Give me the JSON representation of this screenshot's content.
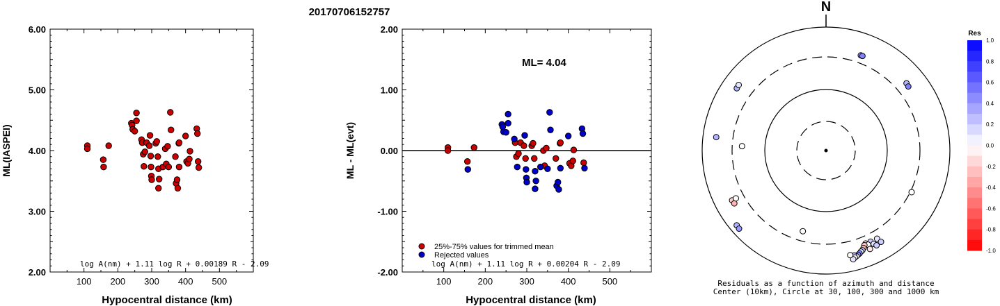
{
  "page_title": "20170706152757",
  "chart_data": [
    {
      "type": "scatter",
      "xlabel": "Hypocentral distance (km)",
      "ylabel": "ML(IASPEI)",
      "xlim": [
        0,
        600
      ],
      "ylim": [
        2.0,
        6.0
      ],
      "xticks": [
        "100",
        "200",
        "300",
        "400",
        "500"
      ],
      "yticks": [
        "2.00",
        "3.00",
        "4.00",
        "5.00",
        "6.00"
      ],
      "formula": "log A(nm) + 1.11 log R + 0.00189 R - 2.09",
      "point_color": "#cc0000",
      "points": [
        [
          110,
          4.08
        ],
        [
          110,
          4.03
        ],
        [
          157,
          3.85
        ],
        [
          158,
          3.73
        ],
        [
          173,
          4.08
        ],
        [
          240,
          4.45
        ],
        [
          242,
          4.42
        ],
        [
          244,
          4.35
        ],
        [
          250,
          4.32
        ],
        [
          255,
          4.62
        ],
        [
          255,
          4.49
        ],
        [
          270,
          4.18
        ],
        [
          272,
          4.13
        ],
        [
          275,
          3.94
        ],
        [
          277,
          3.74
        ],
        [
          280,
          3.98
        ],
        [
          285,
          4.13
        ],
        [
          293,
          4.08
        ],
        [
          295,
          4.25
        ],
        [
          297,
          3.91
        ],
        [
          298,
          3.73
        ],
        [
          299,
          3.58
        ],
        [
          300,
          3.52
        ],
        [
          312,
          4.12
        ],
        [
          315,
          4.15
        ],
        [
          318,
          3.9
        ],
        [
          320,
          3.7
        ],
        [
          322,
          3.53
        ],
        [
          320,
          3.38
        ],
        [
          333,
          3.73
        ],
        [
          340,
          4.03
        ],
        [
          343,
          3.78
        ],
        [
          347,
          4.07
        ],
        [
          350,
          3.73
        ],
        [
          355,
          4.63
        ],
        [
          357,
          4.34
        ],
        [
          370,
          3.9
        ],
        [
          372,
          3.46
        ],
        [
          375,
          3.52
        ],
        [
          377,
          3.38
        ],
        [
          380,
          4.12
        ],
        [
          381,
          4.13
        ],
        [
          381,
          3.73
        ],
        [
          400,
          4.24
        ],
        [
          403,
          3.82
        ],
        [
          407,
          3.79
        ],
        [
          411,
          3.86
        ],
        [
          413,
          3.99
        ],
        [
          433,
          4.36
        ],
        [
          435,
          4.28
        ],
        [
          437,
          3.82
        ],
        [
          439,
          3.72
        ]
      ]
    },
    {
      "type": "scatter",
      "xlabel": "Hypocentral distance (km)",
      "ylabel": "ML - ML(evt)",
      "xlim": [
        0,
        600
      ],
      "ylim": [
        -2.0,
        2.0
      ],
      "xticks": [
        "100",
        "200",
        "300",
        "400",
        "500"
      ],
      "yticks": [
        "-2.00",
        "-1.00",
        "0.00",
        "1.00",
        "2.00"
      ],
      "ml_label": "ML= 4.04",
      "zero_line": 0.0,
      "legend": [
        "25%-75% values for trimmed mean",
        "Rejected values"
      ],
      "legend_colors": [
        "#cc0000",
        "#0000cc"
      ],
      "formula": "log A(nm) + 1.11 log R + 0.00204 R - 2.09",
      "series": [
        {
          "name": "25%-75% values for trimmed mean",
          "color": "#cc0000",
          "points": [
            [
              110,
              0.05
            ],
            [
              110,
              0.0
            ],
            [
              157,
              -0.18
            ],
            [
              173,
              0.05
            ],
            [
              272,
              0.13
            ],
            [
              275,
              -0.1
            ],
            [
              280,
              -0.05
            ],
            [
              285,
              0.13
            ],
            [
              293,
              0.08
            ],
            [
              297,
              -0.13
            ],
            [
              312,
              0.08
            ],
            [
              315,
              0.12
            ],
            [
              318,
              -0.13
            ],
            [
              340,
              0.0
            ],
            [
              343,
              -0.25
            ],
            [
              347,
              0.04
            ],
            [
              370,
              -0.13
            ],
            [
              380,
              0.12
            ],
            [
              381,
              0.13
            ],
            [
              403,
              -0.21
            ],
            [
              407,
              -0.25
            ],
            [
              411,
              -0.17
            ],
            [
              413,
              0.01
            ],
            [
              437,
              -0.2
            ]
          ]
        },
        {
          "name": "Rejected values",
          "color": "#0000cc",
          "points": [
            [
              158,
              -0.31
            ],
            [
              240,
              0.43
            ],
            [
              242,
              0.39
            ],
            [
              244,
              0.31
            ],
            [
              250,
              0.3
            ],
            [
              255,
              0.6
            ],
            [
              255,
              0.45
            ],
            [
              270,
              0.19
            ],
            [
              277,
              -0.27
            ],
            [
              295,
              0.25
            ],
            [
              298,
              -0.31
            ],
            [
              299,
              -0.45
            ],
            [
              300,
              -0.52
            ],
            [
              320,
              -0.34
            ],
            [
              322,
              -0.5
            ],
            [
              320,
              -0.63
            ],
            [
              333,
              -0.27
            ],
            [
              350,
              -0.3
            ],
            [
              355,
              0.63
            ],
            [
              357,
              0.34
            ],
            [
              372,
              -0.58
            ],
            [
              375,
              -0.52
            ],
            [
              377,
              -0.64
            ],
            [
              381,
              -0.29
            ],
            [
              400,
              0.24
            ],
            [
              433,
              0.36
            ],
            [
              435,
              0.28
            ],
            [
              439,
              -0.29
            ]
          ]
        }
      ]
    },
    {
      "type": "scatter",
      "subtype": "polar",
      "north_label": "N",
      "caption_line1": "Residuals as a function of azimuth and distance",
      "caption_line2": "Center (10km), Circle at 30, 100, 300 and 1000 km",
      "colorbar_title": "Res",
      "colorbar_ticks": [
        "1.0",
        "0.8",
        "0.6",
        "0.4",
        "0.2",
        "0.0",
        "-0.2",
        "-0.4",
        "-0.6",
        "-0.8",
        "-1.0"
      ],
      "rings_km": [
        30,
        100,
        300,
        1000
      ],
      "points": [
        {
          "az": 20,
          "dist_km": 480,
          "res": 0.4
        },
        {
          "az": 21,
          "dist_km": 480,
          "res": 0.5
        },
        {
          "az": 50,
          "dist_km": 560,
          "res": 0.3
        },
        {
          "az": 52,
          "dist_km": 545,
          "res": 0.5
        },
        {
          "az": 305,
          "dist_km": 650,
          "res": 0.3
        },
        {
          "az": 307,
          "dist_km": 660,
          "res": 0.1
        },
        {
          "az": 277,
          "dist_km": 690,
          "res": 0.3
        },
        {
          "az": 273,
          "dist_km": 240,
          "res": 0.0
        },
        {
          "az": 242,
          "dist_km": 590,
          "res": -0.2
        },
        {
          "az": 240,
          "dist_km": 580,
          "res": -0.3
        },
        {
          "az": 242,
          "dist_km": 490,
          "res": 0.0
        },
        {
          "az": 230,
          "dist_km": 830,
          "res": 0.3
        },
        {
          "az": 228,
          "dist_km": 840,
          "res": 0.4
        },
        {
          "az": 116,
          "dist_km": 330,
          "res": 0.0
        },
        {
          "az": 196,
          "dist_km": 240,
          "res": 0.0
        },
        {
          "az": 157,
          "dist_km": 470,
          "res": -0.1
        },
        {
          "az": 154,
          "dist_km": 480,
          "res": 0.2
        },
        {
          "az": 150,
          "dist_km": 490,
          "res": 0.1
        },
        {
          "az": 153,
          "dist_km": 560,
          "res": 0.1
        },
        {
          "az": 149,
          "dist_km": 600,
          "res": 0.2
        },
        {
          "az": 156,
          "dist_km": 520,
          "res": 0.0
        },
        {
          "az": 158,
          "dist_km": 500,
          "res": -0.2
        },
        {
          "az": 159,
          "dist_km": 550,
          "res": -0.3
        },
        {
          "az": 160,
          "dist_km": 590,
          "res": 0.2
        },
        {
          "az": 161,
          "dist_km": 610,
          "res": 0.1
        },
        {
          "az": 162,
          "dist_km": 640,
          "res": 0.5
        },
        {
          "az": 163,
          "dist_km": 660,
          "res": 0.4
        },
        {
          "az": 164,
          "dist_km": 680,
          "res": 0.0
        },
        {
          "az": 165,
          "dist_km": 650,
          "res": 0.3
        },
        {
          "az": 165,
          "dist_km": 700,
          "res": 0.0
        },
        {
          "az": 166,
          "dist_km": 730,
          "res": 0.1
        },
        {
          "az": 152,
          "dist_km": 620,
          "res": 0.2
        },
        {
          "az": 156,
          "dist_km": 630,
          "res": -0.1
        },
        {
          "az": 167,
          "dist_km": 620,
          "res": 0.0
        }
      ]
    }
  ]
}
